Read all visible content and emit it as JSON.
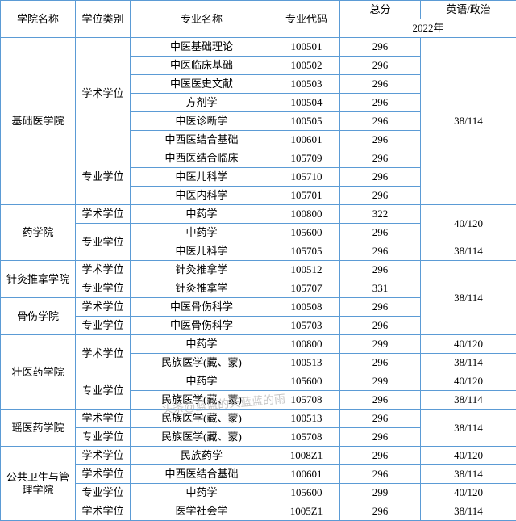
{
  "header": {
    "college": "学院名称",
    "degree": "学位类别",
    "major": "专业名称",
    "code": "专业代码",
    "total": "总分",
    "eng": "英语/政治",
    "year": "2022年"
  },
  "colleges": [
    {
      "name": "基础医学院",
      "groups": [
        {
          "degree": "学术学位",
          "rows": [
            {
              "m": "中医基础理论",
              "c": "100501",
              "t": "296"
            },
            {
              "m": "中医临床基础",
              "c": "100502",
              "t": "296"
            },
            {
              "m": "中医医史文献",
              "c": "100503",
              "t": "296"
            },
            {
              "m": "方剂学",
              "c": "100504",
              "t": "296"
            },
            {
              "m": "中医诊断学",
              "c": "100505",
              "t": "296"
            },
            {
              "m": "中西医结合基础",
              "c": "100601",
              "t": "296"
            }
          ]
        },
        {
          "degree": "专业学位",
          "rows": [
            {
              "m": "中西医结合临床",
              "c": "105709",
              "t": "296"
            },
            {
              "m": "中医儿科学",
              "c": "105710",
              "t": "296"
            },
            {
              "m": "中医内科学",
              "c": "105701",
              "t": "296"
            }
          ]
        }
      ],
      "eng": [
        "38/114"
      ]
    },
    {
      "name": "药学院",
      "groups": [
        {
          "degree": "学术学位",
          "rows": [
            {
              "m": "中药学",
              "c": "100800",
              "t": "322"
            }
          ]
        },
        {
          "degree": "专业学位",
          "rows": [
            {
              "m": "中药学",
              "c": "105600",
              "t": "296"
            },
            {
              "m": "中医儿科学",
              "c": "105705",
              "t": "296"
            }
          ]
        }
      ],
      "eng": [
        "40/120",
        "38/114"
      ],
      "engSpan": [
        2,
        1
      ]
    },
    {
      "name": "针灸推拿学院",
      "groups": [
        {
          "degree": "学术学位",
          "rows": [
            {
              "m": "针灸推拿学",
              "c": "100512",
              "t": "296"
            }
          ]
        },
        {
          "degree": "专业学位",
          "rows": [
            {
              "m": "针灸推拿学",
              "c": "105707",
              "t": "331"
            }
          ]
        }
      ]
    },
    {
      "name": "骨伤学院",
      "groups": [
        {
          "degree": "学术学位",
          "rows": [
            {
              "m": "中医骨伤科学",
              "c": "100508",
              "t": "296"
            }
          ]
        },
        {
          "degree": "专业学位",
          "rows": [
            {
              "m": "中医骨伤科学",
              "c": "105703",
              "t": "296"
            }
          ]
        }
      ],
      "engCombined": "38/114",
      "engCombinedSpan": 4
    },
    {
      "name": "壮医药学院",
      "groups": [
        {
          "degree": "学术学位",
          "rows": [
            {
              "m": "中药学",
              "c": "100800",
              "t": "299"
            },
            {
              "m": "民族医学(藏、蒙)",
              "c": "100513",
              "t": "296"
            }
          ]
        },
        {
          "degree": "专业学位",
          "rows": [
            {
              "m": "中药学",
              "c": "105600",
              "t": "299"
            },
            {
              "m": "民族医学(藏、蒙)",
              "c": "105708",
              "t": "296"
            }
          ]
        }
      ],
      "eng": [
        "40/120",
        "38/114",
        "40/120",
        "38/114"
      ],
      "engSpan": [
        1,
        1,
        1,
        1
      ]
    },
    {
      "name": "瑶医药学院",
      "groups": [
        {
          "degree": "学术学位",
          "rows": [
            {
              "m": "民族医学(藏、蒙)",
              "c": "100513",
              "t": "296"
            }
          ]
        },
        {
          "degree": "专业学位",
          "rows": [
            {
              "m": "民族医学(藏、蒙)",
              "c": "105708",
              "t": "296"
            }
          ]
        }
      ],
      "engYao": "38/114"
    },
    {
      "name": "公共卫生与管理学院",
      "groups": [
        {
          "degree": "学术学位",
          "rows": [
            {
              "m": "民族药学",
              "c": "1008Z1",
              "t": "296"
            }
          ]
        },
        {
          "degree": "学术学位",
          "rows": [
            {
              "m": "中西医结合基础",
              "c": "100601",
              "t": "296"
            }
          ]
        },
        {
          "degree": "专业学位",
          "rows": [
            {
              "m": "中药学",
              "c": "105600",
              "t": "299"
            }
          ]
        },
        {
          "degree": "学术学位",
          "rows": [
            {
              "m": "医学社会学",
              "c": "1005Z1",
              "t": "296"
            }
          ]
        }
      ],
      "eng": [
        "40/120",
        "38/114",
        "40/120",
        "38/114"
      ],
      "engSpan": [
        1,
        1,
        1,
        1
      ]
    }
  ],
  "watermark": "头条@蓝蓝的天蓝蓝的雨"
}
